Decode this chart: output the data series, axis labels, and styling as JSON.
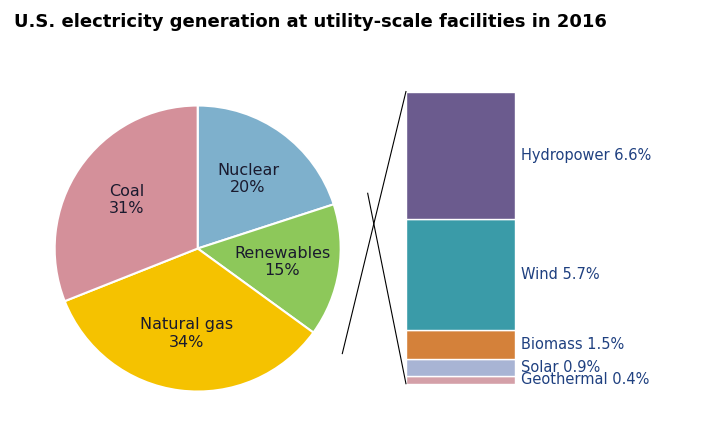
{
  "title": "U.S. electricity generation at utility-scale facilities in 2016",
  "main_slices": [
    {
      "label": "Nuclear\n20%",
      "value": 20,
      "color": "#7EB0CC"
    },
    {
      "label": "Renewables\n15%",
      "value": 15,
      "color": "#8DC85A"
    },
    {
      "label": "Natural gas\n34%",
      "value": 34,
      "color": "#F5C200"
    },
    {
      "label": "Coal\n31%",
      "value": 31,
      "color": "#D4909A"
    }
  ],
  "renewables_breakdown": [
    {
      "label": "Hydropower 6.6%",
      "value": 6.6,
      "color": "#6B5B8E"
    },
    {
      "label": "Wind 5.7%",
      "value": 5.7,
      "color": "#3A9BA8"
    },
    {
      "label": "Biomass 1.5%",
      "value": 1.5,
      "color": "#D4813A"
    },
    {
      "label": "Solar 0.9%",
      "value": 0.9,
      "color": "#A8B4D4"
    },
    {
      "label": "Geothermal 0.4%",
      "value": 0.4,
      "color": "#D4A0A8"
    }
  ],
  "title_fontsize": 13,
  "label_fontsize": 11.5,
  "legend_fontsize": 10.5,
  "pie_label_color": "#1a1a2e",
  "legend_text_color": "#1F4080",
  "background_color": "#FFFFFF"
}
